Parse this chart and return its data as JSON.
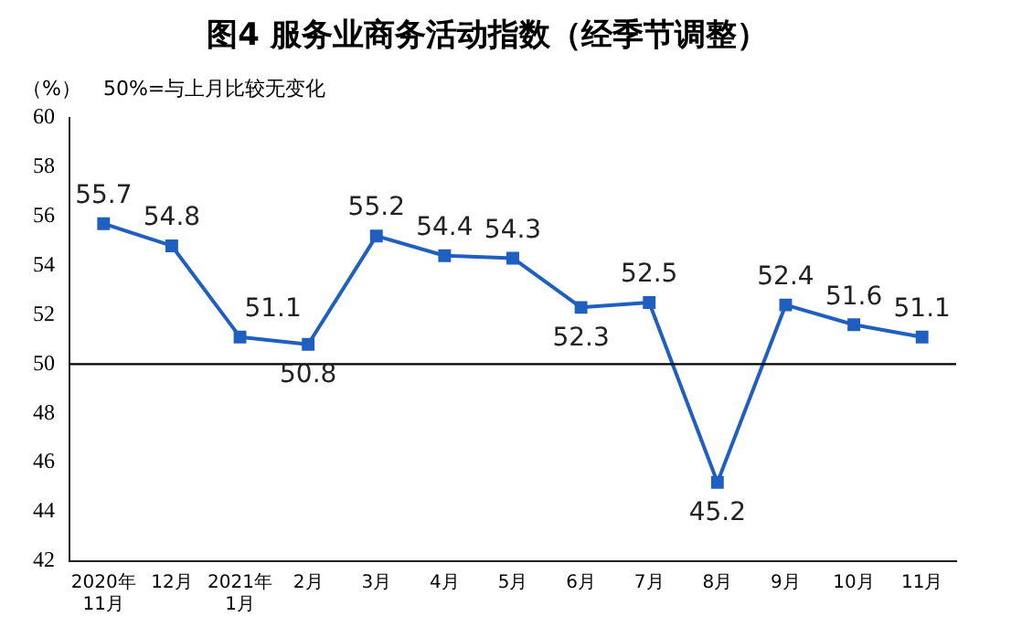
{
  "chart_data": {
    "type": "line",
    "title": "图4 服务业商务活动指数（经季节调整）",
    "ylabel": "（%）",
    "annotations": [
      "50%=与上月比较无变化"
    ],
    "categories": [
      "2020年\n11月",
      "12月",
      "2021年\n1月",
      "2月",
      "3月",
      "4月",
      "5月",
      "6月",
      "7月",
      "8月",
      "9月",
      "10月",
      "11月"
    ],
    "series": [
      {
        "color": "#1f5fbf",
        "values": [
          55.7,
          54.8,
          51.1,
          50.8,
          55.2,
          54.4,
          54.3,
          52.3,
          52.5,
          45.2,
          52.4,
          51.6,
          51.1
        ]
      }
    ],
    "ylim": [
      42,
      60
    ],
    "yticks": [
      42,
      44,
      46,
      48,
      50,
      52,
      54,
      56,
      58,
      60
    ],
    "ref_lines": [
      {
        "axis": "y",
        "value": 50,
        "color": "#000000"
      }
    ],
    "data_labels": true,
    "marker": "square",
    "line_style": "solid",
    "grid": false,
    "legend": false
  }
}
